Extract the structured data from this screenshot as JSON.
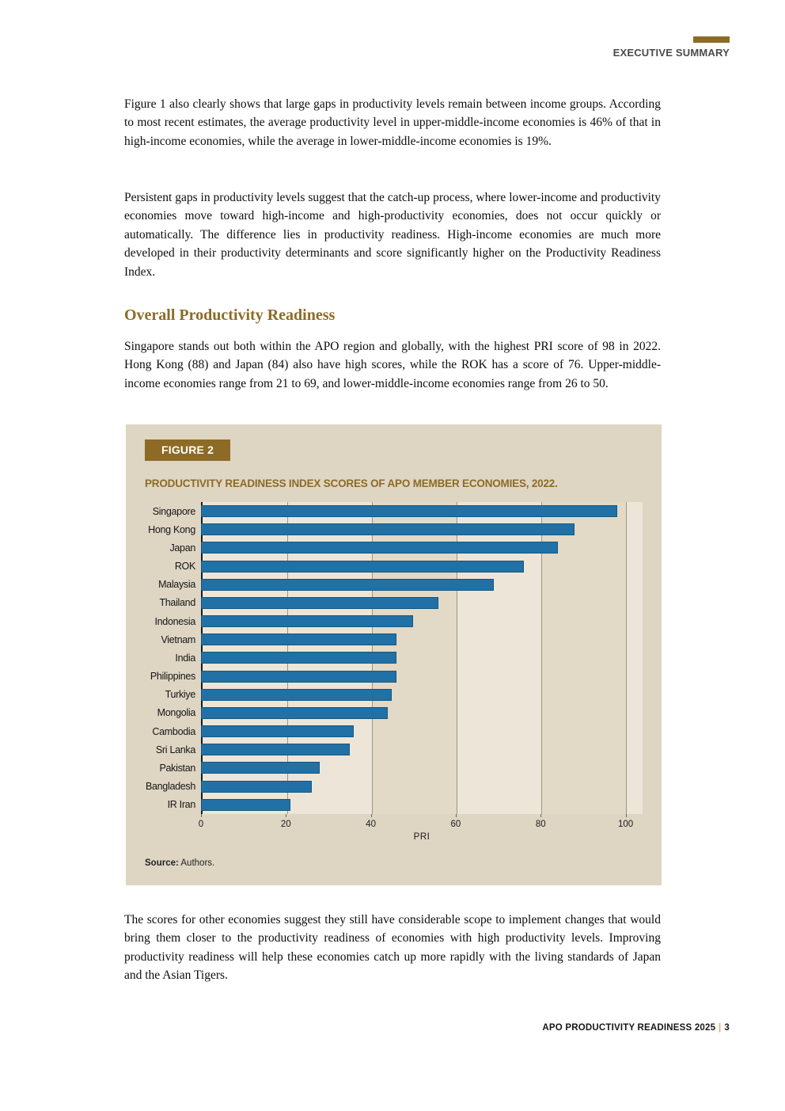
{
  "header": {
    "eyebrow": "EXECUTIVE SUMMARY"
  },
  "paragraphs": {
    "p1": "Figure 1 also clearly shows that large gaps in productivity levels remain between income groups. According to most recent estimates, the average productivity level in upper-middle-income economies is 46% of that in high-income economies, while the average in lower-middle-income economies is 19%.",
    "p2": "Persistent gaps in productivity levels suggest that the catch-up process, where lower-income and productivity economies move toward high-income and high-productivity economies, does not occur quickly or automatically. The difference lies in productivity readiness. High-income economies are much more developed in their productivity determinants and score significantly higher on the Productivity Readiness Index.",
    "p3": "Singapore stands out both within the APO region and globally, with the highest PRI score of 98 in 2022. Hong Kong (88) and Japan (84) also have high scores, while the ROK has a score of 76. Upper-middle-income economies range from 21 to 69, and lower-middle-income economies range from 26 to 50.",
    "p4": "The scores for other economies suggest they still have considerable scope to implement changes that would bring them closer to the productivity readiness of economies with high productivity levels. Improving productivity readiness will help these economies catch up more rapidly with the living standards of Japan and the Asian Tigers."
  },
  "heading": "Overall Productivity Readiness",
  "figure": {
    "label": "FIGURE 2",
    "title": "PRODUCTIVITY READINESS INDEX SCORES OF APO MEMBER ECONOMIES, 2022.",
    "source_label": "Source:",
    "source_text": " Authors."
  },
  "chart_data": {
    "type": "bar",
    "orientation": "horizontal",
    "title": "PRODUCTIVITY READINESS INDEX SCORES OF APO MEMBER ECONOMIES, 2022.",
    "categories": [
      "Singapore",
      "Hong Kong",
      "Japan",
      "ROK",
      "Malaysia",
      "Thailand",
      "Indonesia",
      "Vietnam",
      "India",
      "Philippines",
      "Turkiye",
      "Mongolia",
      "Cambodia",
      "Sri Lanka",
      "Pakistan",
      "Bangladesh",
      "IR Iran"
    ],
    "values": [
      98,
      88,
      84,
      76,
      69,
      56,
      50,
      46,
      46,
      46,
      45,
      44,
      36,
      35,
      28,
      26,
      21
    ],
    "xlabel": "PRI",
    "ylabel": "",
    "xlim": [
      0,
      104
    ],
    "xticks": [
      0,
      20,
      40,
      60,
      80,
      100
    ],
    "grid": "vertical",
    "legend_position": "none",
    "shaded_bands": [
      [
        40,
        60
      ],
      [
        80,
        100
      ]
    ],
    "bar_color": "#2171a6"
  },
  "footer": {
    "text": "APO PRODUCTIVITY READINESS 2025",
    "separator": "|",
    "page_number": "3"
  },
  "colors": {
    "accent_gold": "#8d6b26",
    "figure_background": "#ded5c3",
    "plot_background": "#ede6d8",
    "plot_band": "#e2d9c6",
    "gridline": "#9c968a",
    "bar_blue": "#2171a6",
    "footer_separator_orange": "#e87722",
    "eyebrow_gray": "#4a4a4c"
  }
}
